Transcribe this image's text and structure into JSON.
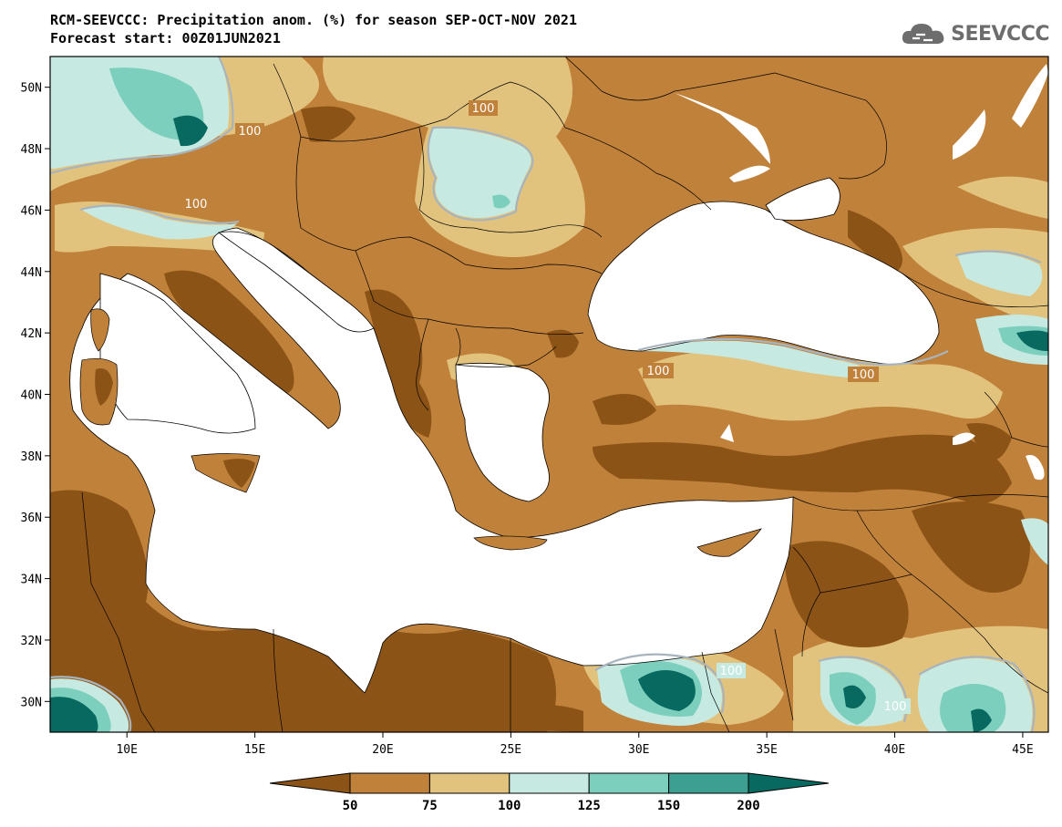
{
  "header": {
    "title_line1": "RCM-SEEVCCC: Precipitation anom. (%) for season SEP-OCT-NOV 2021",
    "title_line2": "Forecast start: 00Z01JUN2021"
  },
  "logo": {
    "text": "SEEVCCC",
    "icon": "cloud-logo-icon"
  },
  "map": {
    "lon_range": [
      7,
      46
    ],
    "lat_range": [
      29,
      51
    ],
    "lon_ticks": [
      "10E",
      "15E",
      "20E",
      "25E",
      "30E",
      "35E",
      "40E",
      "45E"
    ],
    "lat_ticks": [
      "50N",
      "48N",
      "46N",
      "44N",
      "42N",
      "40N",
      "38N",
      "36N",
      "34N",
      "32N",
      "30N"
    ],
    "contour_labels": [
      "100",
      "100",
      "100",
      "100",
      "100",
      "100",
      "100"
    ]
  },
  "colorbar": {
    "labels": [
      "50",
      "75",
      "100",
      "125",
      "150",
      "200"
    ],
    "colors": [
      "#8b5315",
      "#c0813a",
      "#e2c37e",
      "#c6eae2",
      "#7dcfbd",
      "#3c9f91",
      "#07695f"
    ]
  }
}
